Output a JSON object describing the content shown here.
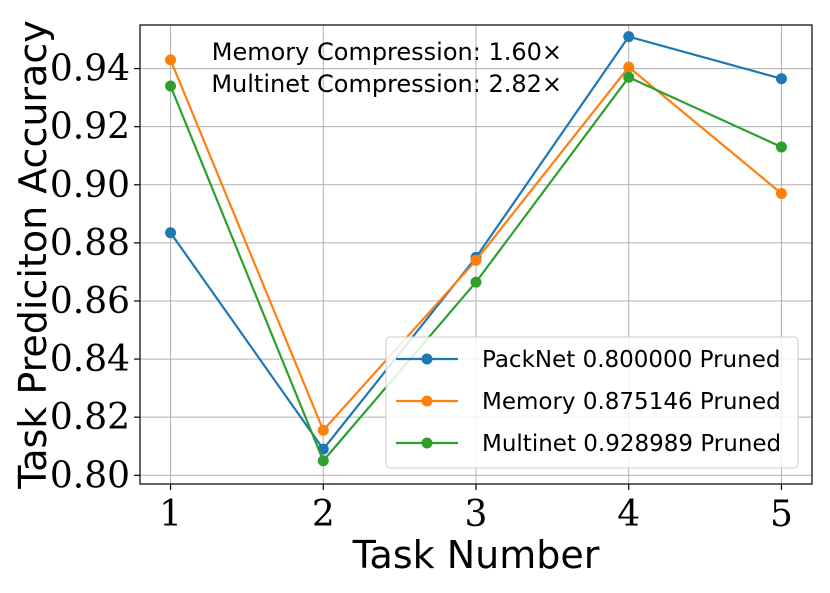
{
  "chart_data": {
    "type": "line",
    "xlabel": "Task Number",
    "ylabel": "Task Prediciton Accuracy",
    "x": [
      1,
      2,
      3,
      4,
      5
    ],
    "xlim": [
      0.8,
      5.2
    ],
    "ylim": [
      0.797,
      0.955
    ],
    "xticks": [
      1,
      2,
      3,
      4,
      5
    ],
    "xtick_labels": [
      "1",
      "2",
      "3",
      "4",
      "5"
    ],
    "yticks": [
      0.8,
      0.82,
      0.84,
      0.86,
      0.88,
      0.9,
      0.92,
      0.94
    ],
    "ytick_labels": [
      "0.80",
      "0.82",
      "0.84",
      "0.86",
      "0.88",
      "0.90",
      "0.92",
      "0.94"
    ],
    "grid": true,
    "legend_position": "lower-right",
    "annotations": [
      "Memory Compression: 1.60×",
      "Multinet Compression: 2.82×"
    ],
    "series": [
      {
        "name": "PackNet 0.800000 Pruned",
        "color": "#1f77b4",
        "values": [
          0.8835,
          0.809,
          0.875,
          0.951,
          0.9365
        ]
      },
      {
        "name": "Memory 0.875146 Pruned",
        "color": "#ff7f0e",
        "values": [
          0.943,
          0.8155,
          0.874,
          0.9405,
          0.897
        ]
      },
      {
        "name": "Multinet 0.928989 Pruned",
        "color": "#2ca02c",
        "values": [
          0.934,
          0.805,
          0.8665,
          0.937,
          0.913
        ]
      }
    ]
  }
}
